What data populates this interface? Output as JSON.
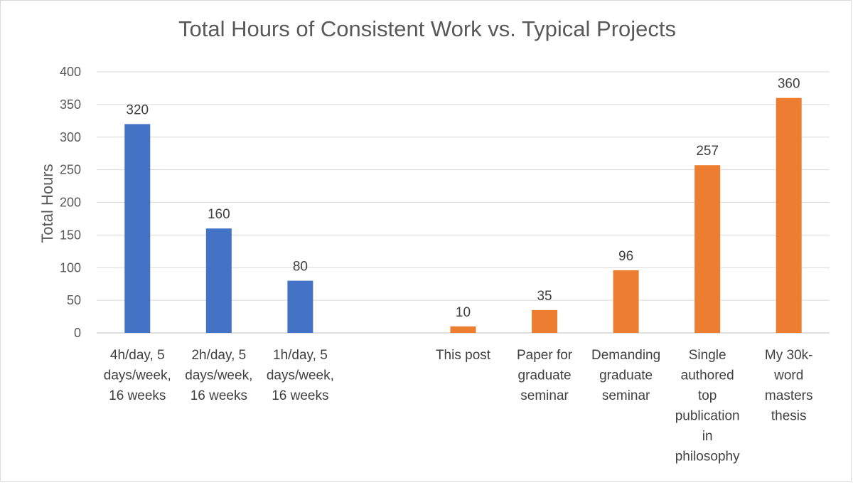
{
  "chart_data": {
    "type": "bar",
    "title": "Total Hours of Consistent Work vs. Typical Projects",
    "xlabel": "",
    "ylabel": "Total Hours",
    "ylim": [
      0,
      400
    ],
    "yticks": [
      0,
      50,
      100,
      150,
      200,
      250,
      300,
      350,
      400
    ],
    "grid": true,
    "legend": "none",
    "categories": [
      [
        "4h/day, 5",
        "days/week,",
        "16 weeks"
      ],
      [
        "2h/day, 5",
        "days/week,",
        "16 weeks"
      ],
      [
        "1h/day, 5",
        "days/week,",
        "16 weeks"
      ],
      [],
      [
        "This post"
      ],
      [
        "Paper for",
        "graduate",
        "seminar"
      ],
      [
        "Demanding",
        "graduate",
        "seminar"
      ],
      [
        "Single",
        "authored",
        "top",
        "publication",
        "in",
        "philosophy"
      ],
      [
        "My 30k-",
        "word",
        "masters",
        "thesis"
      ]
    ],
    "values": [
      320,
      160,
      80,
      null,
      10,
      35,
      96,
      257,
      360
    ],
    "data_labels": [
      "320",
      "160",
      "80",
      "",
      "10",
      "35",
      "96",
      "257",
      "360"
    ],
    "bar_colors": [
      "#4472c4",
      "#4472c4",
      "#4472c4",
      null,
      "#ed7d31",
      "#ed7d31",
      "#ed7d31",
      "#ed7d31",
      "#ed7d31"
    ]
  }
}
